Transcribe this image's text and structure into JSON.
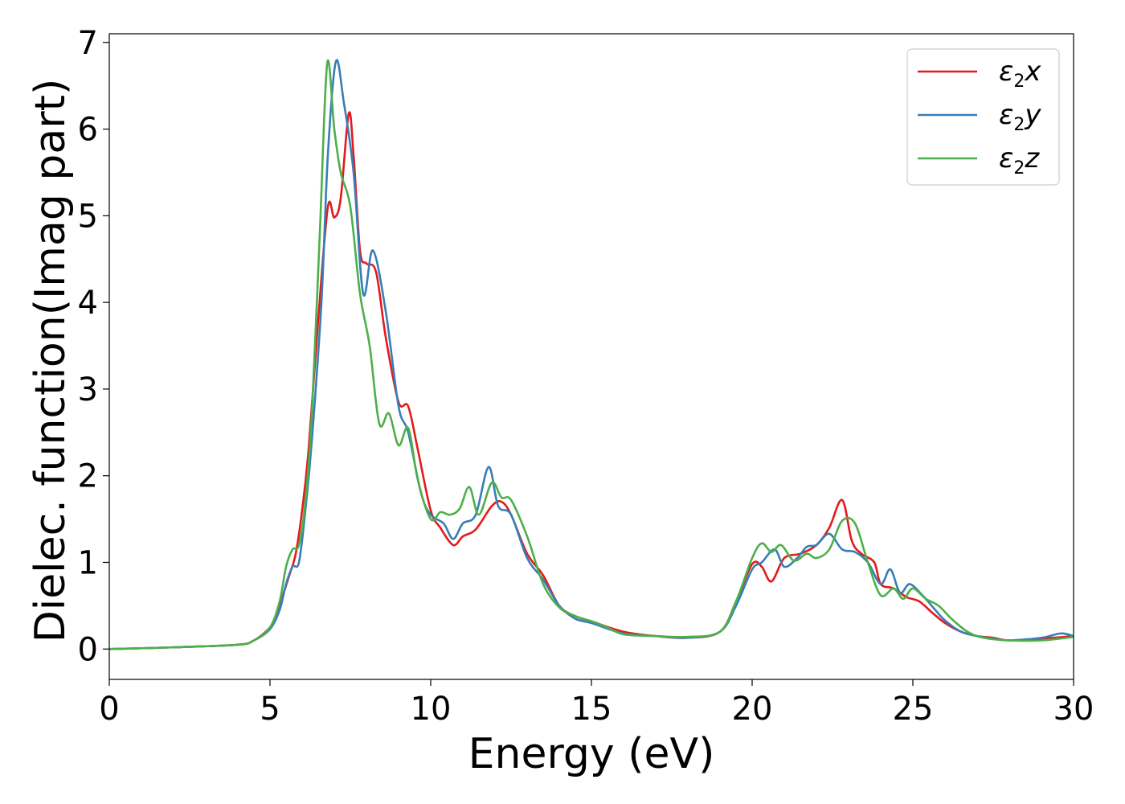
{
  "chart_data": {
    "type": "line",
    "xlabel": "Energy (eV)",
    "ylabel": "Dielec. function(Imag part)",
    "xlim": [
      0,
      30
    ],
    "ylim": [
      -0.35,
      7.1
    ],
    "xticks": [
      0,
      5,
      10,
      15,
      20,
      25,
      30
    ],
    "yticks": [
      0,
      1,
      2,
      3,
      4,
      5,
      6,
      7
    ],
    "grid": false,
    "legend_position": "top-right",
    "series": [
      {
        "name": "ε2x",
        "legend": {
          "symbol": "ε",
          "sub": "2",
          "suffix": "x"
        },
        "color": "#e41a1c",
        "x": [
          0,
          2,
          4,
          4.5,
          5,
          5.2,
          5.4,
          5.6,
          5.8,
          6.0,
          6.2,
          6.5,
          6.8,
          7.0,
          7.2,
          7.45,
          7.6,
          7.8,
          8.0,
          8.3,
          8.6,
          9.0,
          9.3,
          9.6,
          10.0,
          10.3,
          10.7,
          11.0,
          11.4,
          11.9,
          12.2,
          12.5,
          13.0,
          13.5,
          14.0,
          14.5,
          15.0,
          16.0,
          17.0,
          18.0,
          19.0,
          19.5,
          20.0,
          20.3,
          20.6,
          21.0,
          21.5,
          22.0,
          22.4,
          22.8,
          23.1,
          23.4,
          23.8,
          24.0,
          24.4,
          24.8,
          25.2,
          25.6,
          26.0,
          26.5,
          27.0,
          27.5,
          28.0,
          29.0,
          30.0
        ],
        "y": [
          0.0,
          0.02,
          0.05,
          0.1,
          0.25,
          0.4,
          0.62,
          0.85,
          1.1,
          1.6,
          2.3,
          3.8,
          5.1,
          4.98,
          5.2,
          6.18,
          5.7,
          4.6,
          4.45,
          4.35,
          3.6,
          2.85,
          2.8,
          2.3,
          1.6,
          1.4,
          1.2,
          1.3,
          1.38,
          1.65,
          1.7,
          1.55,
          1.1,
          0.85,
          0.5,
          0.38,
          0.32,
          0.2,
          0.15,
          0.13,
          0.2,
          0.55,
          0.98,
          0.95,
          0.78,
          1.05,
          1.1,
          1.2,
          1.4,
          1.72,
          1.25,
          1.1,
          1.0,
          0.75,
          0.7,
          0.6,
          0.55,
          0.42,
          0.3,
          0.2,
          0.15,
          0.13,
          0.1,
          0.12,
          0.15
        ]
      },
      {
        "name": "ε2y",
        "legend": {
          "symbol": "ε",
          "sub": "2",
          "suffix": "y"
        },
        "color": "#377eb8",
        "x": [
          0,
          2,
          4,
          4.5,
          5,
          5.3,
          5.5,
          5.7,
          5.9,
          6.1,
          6.3,
          6.6,
          6.8,
          7.05,
          7.3,
          7.6,
          7.9,
          8.2,
          8.6,
          9.0,
          9.3,
          9.7,
          10.0,
          10.4,
          10.7,
          11.0,
          11.4,
          11.8,
          12.1,
          12.5,
          13.0,
          13.5,
          14.0,
          14.5,
          15.0,
          16.0,
          17.0,
          18.0,
          19.0,
          19.5,
          20.0,
          20.3,
          20.7,
          21.0,
          21.4,
          21.7,
          22.0,
          22.4,
          22.8,
          23.2,
          23.6,
          24.0,
          24.3,
          24.6,
          24.9,
          25.3,
          25.7,
          26.0,
          26.5,
          27.0,
          27.5,
          28.0,
          29.0,
          29.6,
          30.0
        ],
        "y": [
          0.0,
          0.02,
          0.05,
          0.1,
          0.23,
          0.45,
          0.75,
          0.95,
          1.0,
          1.6,
          2.4,
          4.0,
          5.7,
          6.78,
          6.3,
          5.5,
          4.1,
          4.6,
          3.9,
          2.8,
          2.5,
          1.8,
          1.55,
          1.45,
          1.27,
          1.45,
          1.55,
          2.1,
          1.65,
          1.55,
          1.05,
          0.8,
          0.5,
          0.35,
          0.3,
          0.18,
          0.15,
          0.13,
          0.2,
          0.5,
          0.92,
          1.0,
          1.15,
          0.95,
          1.05,
          1.18,
          1.2,
          1.33,
          1.15,
          1.12,
          1.0,
          0.75,
          0.92,
          0.65,
          0.75,
          0.62,
          0.45,
          0.33,
          0.2,
          0.15,
          0.12,
          0.1,
          0.13,
          0.18,
          0.15
        ]
      },
      {
        "name": "ε2z",
        "legend": {
          "symbol": "ε",
          "sub": "2",
          "suffix": "z"
        },
        "color": "#4daf4a",
        "x": [
          0,
          2,
          4,
          4.5,
          5,
          5.3,
          5.5,
          5.7,
          5.9,
          6.1,
          6.3,
          6.55,
          6.78,
          7.0,
          7.2,
          7.5,
          7.8,
          8.1,
          8.4,
          8.7,
          9.0,
          9.3,
          9.6,
          10.0,
          10.3,
          10.6,
          10.9,
          11.2,
          11.5,
          11.9,
          12.2,
          12.5,
          13.0,
          13.5,
          14.0,
          14.5,
          15.0,
          15.5,
          16.0,
          17.0,
          18.0,
          19.0,
          19.5,
          20.0,
          20.3,
          20.6,
          20.9,
          21.3,
          21.7,
          22.0,
          22.4,
          22.8,
          23.2,
          23.6,
          24.0,
          24.4,
          24.7,
          25.0,
          25.4,
          25.8,
          26.2,
          26.7,
          27.2,
          28.0,
          29.0,
          30.0
        ],
        "y": [
          0.0,
          0.02,
          0.05,
          0.1,
          0.25,
          0.55,
          0.95,
          1.15,
          1.2,
          1.7,
          2.7,
          4.8,
          6.76,
          6.0,
          5.5,
          5.1,
          4.1,
          3.5,
          2.6,
          2.72,
          2.35,
          2.55,
          1.95,
          1.5,
          1.58,
          1.55,
          1.62,
          1.87,
          1.55,
          1.92,
          1.75,
          1.72,
          1.3,
          0.75,
          0.48,
          0.38,
          0.32,
          0.25,
          0.17,
          0.15,
          0.14,
          0.2,
          0.55,
          1.05,
          1.22,
          1.12,
          1.2,
          1.02,
          1.1,
          1.05,
          1.15,
          1.48,
          1.45,
          1.0,
          0.62,
          0.7,
          0.58,
          0.7,
          0.58,
          0.5,
          0.35,
          0.2,
          0.13,
          0.1,
          0.1,
          0.14
        ]
      }
    ]
  }
}
